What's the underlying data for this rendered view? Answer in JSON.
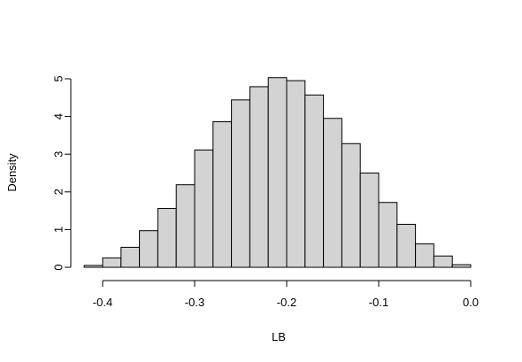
{
  "chart_data": {
    "type": "bar",
    "title": "",
    "xlabel": "LB",
    "ylabel": "Density",
    "xlim": [
      -0.42,
      0.0
    ],
    "ylim": [
      0,
      5
    ],
    "xticks": [
      -0.4,
      -0.3,
      -0.2,
      -0.1,
      0.0
    ],
    "xtick_labels": [
      "-0.4",
      "-0.3",
      "-0.2",
      "-0.1",
      "0.0"
    ],
    "yticks": [
      0,
      1,
      2,
      3,
      4,
      5
    ],
    "ytick_labels": [
      "0",
      "1",
      "2",
      "3",
      "4",
      "5"
    ],
    "bin_width": 0.02,
    "bins": [
      {
        "x0": -0.42,
        "x1": -0.4,
        "density": 0.05
      },
      {
        "x0": -0.4,
        "x1": -0.38,
        "density": 0.25
      },
      {
        "x0": -0.38,
        "x1": -0.36,
        "density": 0.53
      },
      {
        "x0": -0.36,
        "x1": -0.34,
        "density": 0.97
      },
      {
        "x0": -0.34,
        "x1": -0.32,
        "density": 1.56
      },
      {
        "x0": -0.32,
        "x1": -0.3,
        "density": 2.19
      },
      {
        "x0": -0.3,
        "x1": -0.28,
        "density": 3.11
      },
      {
        "x0": -0.28,
        "x1": -0.26,
        "density": 3.86
      },
      {
        "x0": -0.26,
        "x1": -0.24,
        "density": 4.44
      },
      {
        "x0": -0.24,
        "x1": -0.22,
        "density": 4.79
      },
      {
        "x0": -0.22,
        "x1": -0.2,
        "density": 5.03
      },
      {
        "x0": -0.2,
        "x1": -0.18,
        "density": 4.95
      },
      {
        "x0": -0.18,
        "x1": -0.16,
        "density": 4.57
      },
      {
        "x0": -0.16,
        "x1": -0.14,
        "density": 3.95
      },
      {
        "x0": -0.14,
        "x1": -0.12,
        "density": 3.28
      },
      {
        "x0": -0.12,
        "x1": -0.1,
        "density": 2.5
      },
      {
        "x0": -0.1,
        "x1": -0.08,
        "density": 1.72
      },
      {
        "x0": -0.08,
        "x1": -0.06,
        "density": 1.14
      },
      {
        "x0": -0.06,
        "x1": -0.04,
        "density": 0.62
      },
      {
        "x0": -0.04,
        "x1": -0.02,
        "density": 0.3
      },
      {
        "x0": -0.02,
        "x1": 0.0,
        "density": 0.07
      }
    ],
    "bar_fill": "#d3d3d3",
    "bar_stroke": "#000000",
    "grid": false
  }
}
